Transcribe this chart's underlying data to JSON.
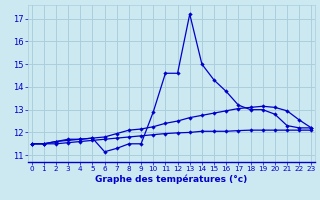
{
  "xlabel": "Graphe des températures (°c)",
  "background_color": "#cce8f0",
  "grid_color": "#aacfdc",
  "line_color": "#0000cc",
  "x": [
    0,
    1,
    2,
    3,
    4,
    5,
    6,
    7,
    8,
    9,
    10,
    11,
    12,
    13,
    14,
    15,
    16,
    17,
    18,
    19,
    20,
    21,
    22,
    23
  ],
  "y_actual": [
    11.5,
    11.5,
    11.6,
    11.7,
    11.7,
    11.75,
    11.15,
    11.3,
    11.5,
    11.5,
    12.9,
    14.6,
    14.6,
    17.2,
    15.0,
    14.3,
    13.8,
    13.2,
    13.0,
    13.0,
    12.8,
    12.3,
    12.2,
    12.2
  ],
  "y_upper": [
    11.5,
    11.5,
    11.6,
    11.65,
    11.7,
    11.75,
    11.8,
    11.95,
    12.1,
    12.15,
    12.25,
    12.4,
    12.5,
    12.65,
    12.75,
    12.85,
    12.95,
    13.05,
    13.1,
    13.15,
    13.1,
    12.95,
    12.55,
    12.2
  ],
  "y_lower": [
    11.5,
    11.5,
    11.5,
    11.55,
    11.6,
    11.65,
    11.7,
    11.75,
    11.8,
    11.85,
    11.9,
    11.95,
    11.98,
    12.0,
    12.05,
    12.05,
    12.05,
    12.08,
    12.1,
    12.1,
    12.1,
    12.1,
    12.1,
    12.1
  ],
  "ylim": [
    10.7,
    17.6
  ],
  "xlim": [
    -0.3,
    23.3
  ],
  "yticks": [
    11,
    12,
    13,
    14,
    15,
    16,
    17
  ],
  "xticks": [
    0,
    1,
    2,
    3,
    4,
    5,
    6,
    7,
    8,
    9,
    10,
    11,
    12,
    13,
    14,
    15,
    16,
    17,
    18,
    19,
    20,
    21,
    22,
    23
  ]
}
